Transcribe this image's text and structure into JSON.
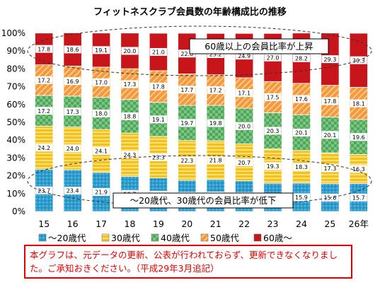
{
  "chart_data": {
    "type": "bar",
    "stacked": true,
    "percent": true,
    "title": "フィットネスクラブ会員数の年齢構成比の推移",
    "categories": [
      "15",
      "16",
      "17",
      "18",
      "19",
      "20",
      "21",
      "22",
      "23",
      "24",
      "25",
      "26年"
    ],
    "ylim": [
      0,
      100
    ],
    "y_ticks": [
      "0%",
      "10%",
      "20%",
      "30%",
      "40%",
      "50%",
      "60%",
      "70%",
      "80%",
      "90%",
      "100%"
    ],
    "grid": false,
    "legend_position": "bottom",
    "series": [
      {
        "name": "～20歳代",
        "color": "#2e9ecf",
        "values": [
          23.7,
          23.4,
          21.9,
          19.7,
          18.8,
          17.5,
          17.9,
          17.2,
          15.8,
          15.9,
          15.6,
          15.7
        ]
      },
      {
        "name": "30歳代",
        "color": "#f3c11b",
        "values": [
          24.2,
          24.0,
          24.1,
          24.3,
          23.3,
          22.3,
          21.8,
          20.7,
          19.3,
          18.3,
          17.3,
          16.3
        ]
      },
      {
        "name": "40歳代",
        "color": "#4fa85a",
        "values": [
          17.2,
          17.3,
          18.0,
          18.8,
          19.1,
          19.7,
          19.8,
          20.0,
          20.3,
          20.1,
          20.1,
          19.6
        ]
      },
      {
        "name": "50歳代",
        "color": "#f49a3c",
        "values": [
          17.2,
          16.9,
          17.0,
          17.3,
          17.8,
          17.7,
          17.2,
          17.1,
          17.5,
          17.6,
          17.8,
          18.1
        ]
      },
      {
        "name": "60歳～",
        "color": "#c8151b",
        "values": [
          17.8,
          18.6,
          19.1,
          20.0,
          21.0,
          22.8,
          23.2,
          24.9,
          27.0,
          28.2,
          29.3,
          30.3
        ]
      }
    ],
    "annotations": {
      "top": "60歳以上の会員比率が上昇",
      "bottom": "～20歳代、30歳代の会員比率が低下"
    }
  },
  "notice": "本グラフは、元データの更新、公表が行われておらず、更新できなくなりました。ご承知おきください。（平成29年3月追記）"
}
